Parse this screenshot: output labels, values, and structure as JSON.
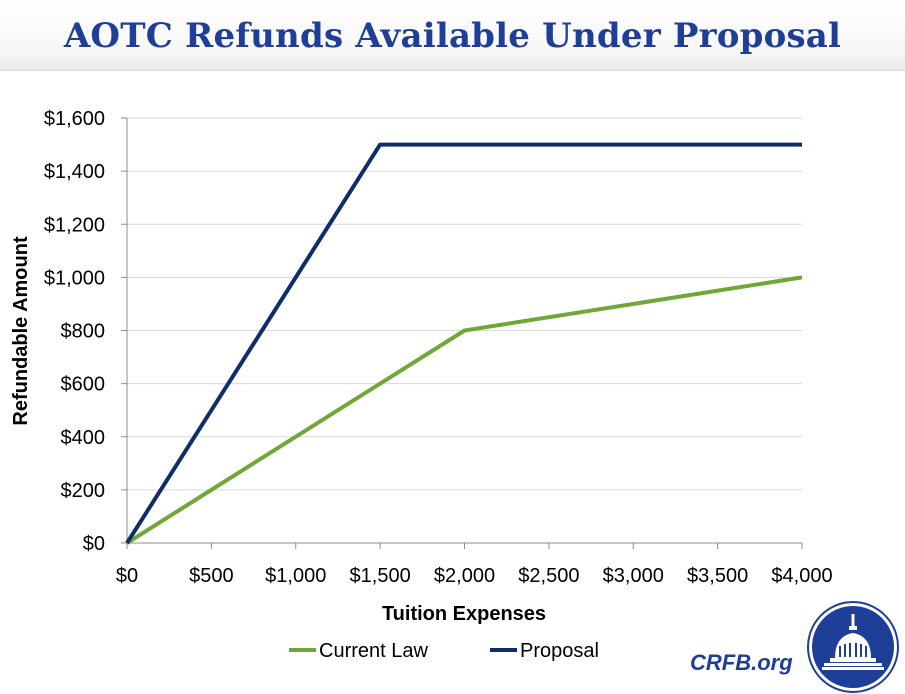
{
  "title": "AOTC Refunds Available Under Proposal",
  "brand": "CRFB.org",
  "logo_icon": "capitol-dome-seal-icon",
  "colors": {
    "title": "#1f3e97",
    "current_law": "#71a737",
    "proposal": "#0d2e6a",
    "grid": "#d9d9d9"
  },
  "chart_data": {
    "type": "line",
    "title": "",
    "xlabel": "Tuition Expenses",
    "ylabel": "Refundable Amount",
    "xlim": [
      0,
      4000
    ],
    "ylim": [
      0,
      1600
    ],
    "x_ticks": [
      0,
      500,
      1000,
      1500,
      2000,
      2500,
      3000,
      3500,
      4000
    ],
    "y_ticks": [
      0,
      200,
      400,
      600,
      800,
      1000,
      1200,
      1400,
      1600
    ],
    "x_tick_labels": [
      "$0",
      "$500",
      "$1,000",
      "$1,500",
      "$2,000",
      "$2,500",
      "$3,000",
      "$3,500",
      "$4,000"
    ],
    "y_tick_labels": [
      "$0",
      "$200",
      "$400",
      "$600",
      "$800",
      "$1,000",
      "$1,200",
      "$1,400",
      "$1,600"
    ],
    "grid": "horizontal",
    "legend_position": "bottom",
    "series": [
      {
        "name": "Current Law",
        "color": "#71a737",
        "points": [
          [
            0,
            0
          ],
          [
            2000,
            800
          ],
          [
            4000,
            1000
          ]
        ]
      },
      {
        "name": "Proposal",
        "color": "#0d2e6a",
        "points": [
          [
            0,
            0
          ],
          [
            1500,
            1500
          ],
          [
            4000,
            1500
          ]
        ]
      }
    ]
  }
}
